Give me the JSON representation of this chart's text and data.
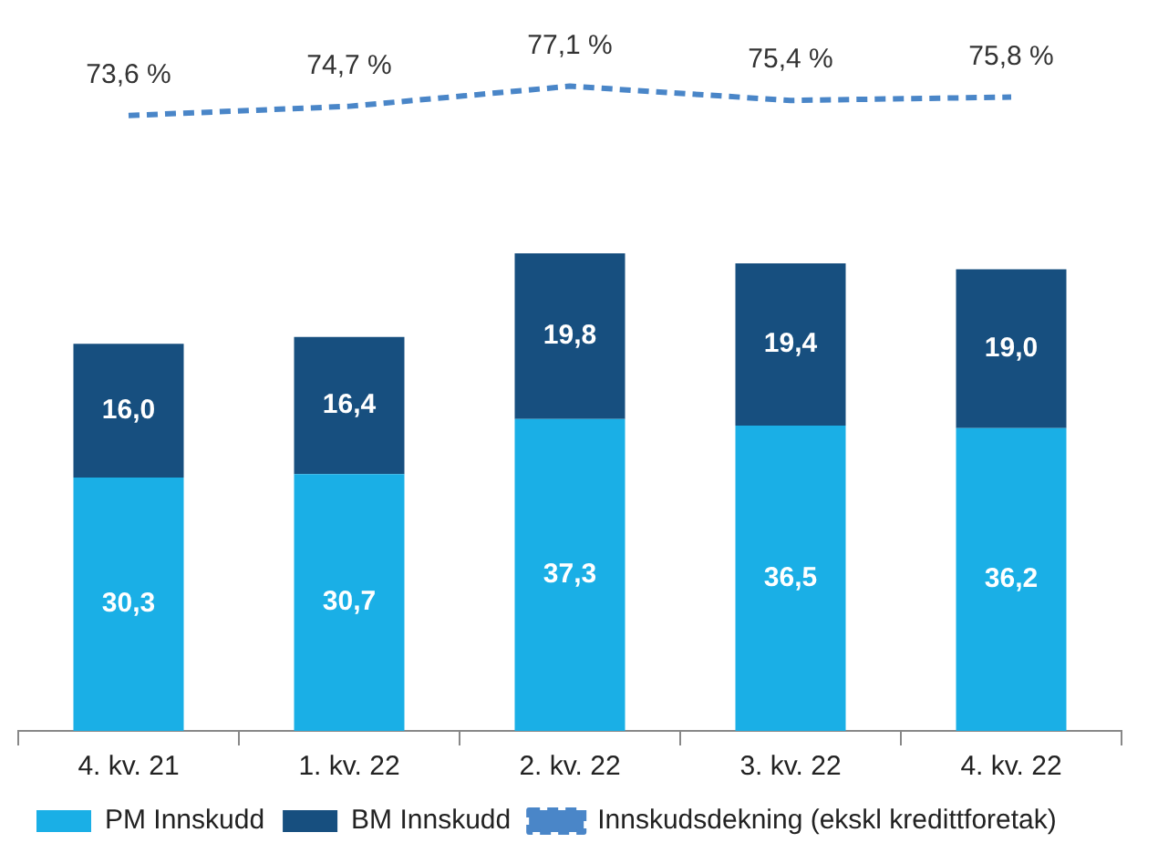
{
  "chart_data": {
    "type": "bar",
    "stacked": true,
    "categories": [
      "4. kv. 21",
      "1. kv. 22",
      "2. kv. 22",
      "3. kv. 22",
      "4. kv. 22"
    ],
    "series": [
      {
        "name": "PM Innskudd",
        "color": "#1aafe6",
        "values": [
          30.3,
          30.7,
          37.3,
          36.5,
          36.2
        ],
        "value_labels": [
          "30,3",
          "30,7",
          "37,3",
          "36,5",
          "36,2"
        ]
      },
      {
        "name": "BM Innskudd",
        "color": "#174f7f",
        "values": [
          16.0,
          16.4,
          19.8,
          19.4,
          19.0
        ],
        "value_labels": [
          "16,0",
          "16,4",
          "19,8",
          "19,4",
          "19,0"
        ]
      },
      {
        "name": "Innskudsdekning (ekskl kredittforetak)",
        "type": "line",
        "line_style": "dashed",
        "color": "#4a86c8",
        "values": [
          73.6,
          74.7,
          77.1,
          75.4,
          75.8
        ],
        "value_labels": [
          "73,6 %",
          "74,7 %",
          "77,1 %",
          "75,4 %",
          "75,8 %"
        ]
      }
    ],
    "legend": "bottom",
    "grid": false,
    "marker": "none",
    "tick_labels": "x"
  }
}
